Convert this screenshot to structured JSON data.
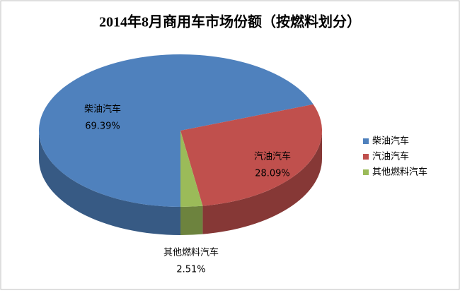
{
  "chart_data": {
    "type": "pie",
    "title": "2014年8月商用车市场份额（按燃料划分）",
    "categories": [
      "柴油汽车",
      "汽油汽车",
      "其他燃料汽车"
    ],
    "values": [
      69.39,
      28.09,
      2.51
    ],
    "value_labels": [
      "69.39%",
      "28.09%",
      "2.51%"
    ],
    "colors": [
      "#4f81bd",
      "#c0504d",
      "#9bbb59"
    ],
    "legend": "right"
  }
}
